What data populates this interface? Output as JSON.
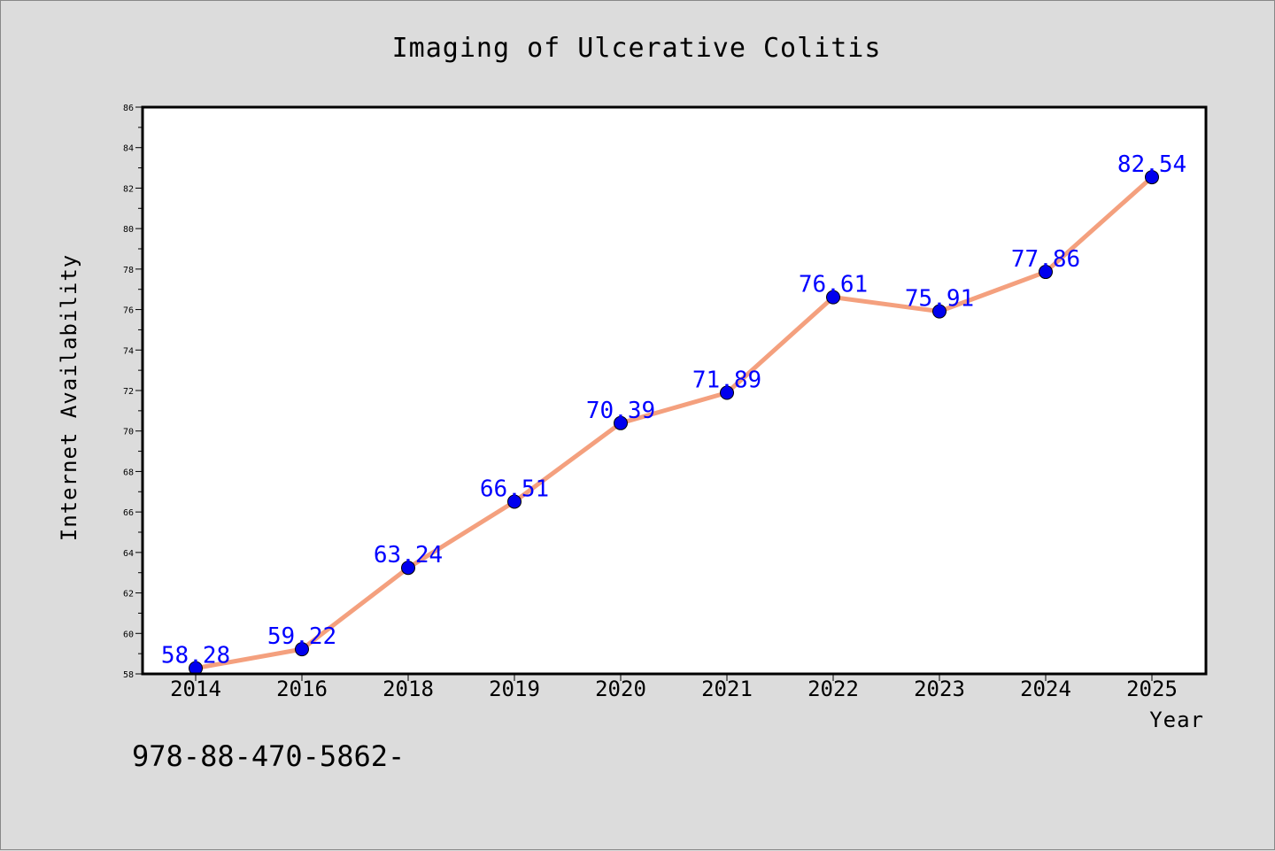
{
  "chart_data": {
    "type": "line",
    "title": "Imaging of Ulcerative Colitis",
    "xlabel": "Year",
    "ylabel": "Internet Availability",
    "categories": [
      "2014",
      "2016",
      "2018",
      "2019",
      "2020",
      "2021",
      "2022",
      "2023",
      "2024",
      "2025"
    ],
    "series": [
      {
        "values": [
          58.28,
          59.22,
          63.24,
          66.51,
          70.39,
          71.89,
          76.61,
          75.91,
          77.86,
          82.54
        ],
        "data_labels": [
          "58.28",
          "59.22",
          "63.24",
          "66.51",
          "70.39",
          "71.89",
          "76.61",
          "75.91",
          "77.86",
          "82.54"
        ],
        "line_color": "#f4a07e",
        "marker_color": "#0000ee"
      }
    ],
    "ylim": [
      58,
      86
    ],
    "yticks": [
      "58",
      "60",
      "62",
      "64",
      "66",
      "68",
      "70",
      "72",
      "74",
      "76",
      "78",
      "80",
      "82",
      "84",
      "86"
    ],
    "grid": false,
    "legend": "none",
    "plot_background": "#ffffff",
    "figure_background": "#dcdcdc"
  },
  "footnote": "978-88-470-5862-"
}
